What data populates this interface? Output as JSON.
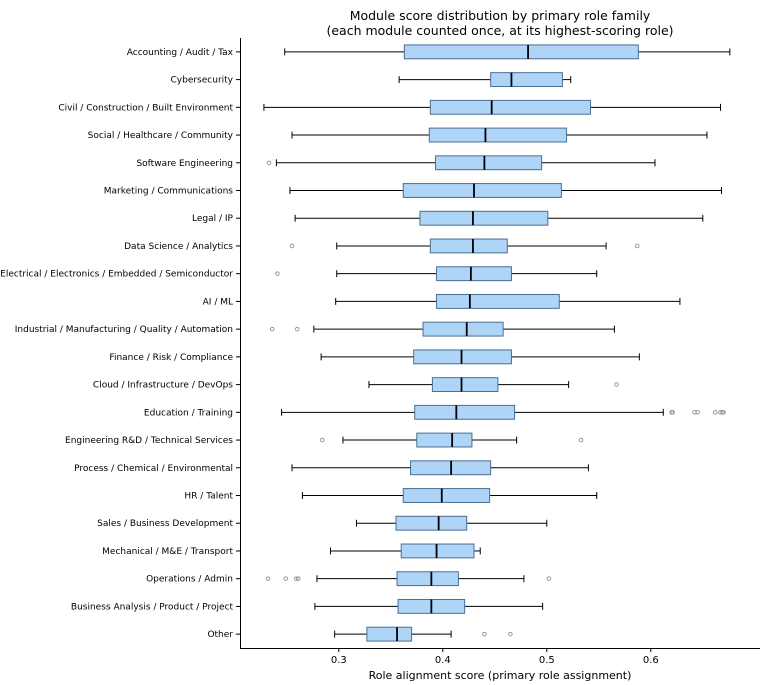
{
  "chart_data": {
    "type": "boxplot",
    "orientation": "horizontal",
    "title_lines": [
      "Module score distribution by primary role family",
      "(each module counted once, at its highest-scoring role)"
    ],
    "xlabel": "Role alignment score (primary role assignment)",
    "ylabel": "",
    "xlim": [
      0.205,
      0.705
    ],
    "xticks": [
      "0.3",
      "0.4",
      "0.5",
      "0.6"
    ],
    "grid": false,
    "colors": {
      "box_fill": "#aed4f8",
      "box_edge": "#4a6f91",
      "median": "#000000",
      "whisker": "#000000",
      "flier": "#999999"
    },
    "categories": [
      {
        "label": "Accounting / Audit / Tax",
        "whisker_low": 0.248,
        "q1": 0.363,
        "median": 0.482,
        "q3": 0.588,
        "whisker_high": 0.676,
        "fliers": []
      },
      {
        "label": "Cybersecurity",
        "whisker_low": 0.358,
        "q1": 0.446,
        "median": 0.466,
        "q3": 0.515,
        "whisker_high": 0.523,
        "fliers": []
      },
      {
        "label": "Civil / Construction / Built Environment",
        "whisker_low": 0.228,
        "q1": 0.388,
        "median": 0.447,
        "q3": 0.542,
        "whisker_high": 0.667,
        "fliers": []
      },
      {
        "label": "Social / Healthcare / Community",
        "whisker_low": 0.255,
        "q1": 0.387,
        "median": 0.441,
        "q3": 0.519,
        "whisker_high": 0.654,
        "fliers": []
      },
      {
        "label": "Software Engineering",
        "whisker_low": 0.24,
        "q1": 0.393,
        "median": 0.44,
        "q3": 0.495,
        "whisker_high": 0.604,
        "fliers": [
          0.233
        ]
      },
      {
        "label": "Marketing / Communications",
        "whisker_low": 0.253,
        "q1": 0.362,
        "median": 0.43,
        "q3": 0.514,
        "whisker_high": 0.668,
        "fliers": []
      },
      {
        "label": "Legal / IP",
        "whisker_low": 0.258,
        "q1": 0.378,
        "median": 0.429,
        "q3": 0.501,
        "whisker_high": 0.65,
        "fliers": []
      },
      {
        "label": "Data Science / Analytics",
        "whisker_low": 0.298,
        "q1": 0.388,
        "median": 0.429,
        "q3": 0.462,
        "whisker_high": 0.557,
        "fliers": [
          0.255,
          0.587
        ]
      },
      {
        "label": "Electrical / Electronics / Embedded / Semiconductor",
        "whisker_low": 0.298,
        "q1": 0.394,
        "median": 0.427,
        "q3": 0.466,
        "whisker_high": 0.548,
        "fliers": [
          0.241
        ]
      },
      {
        "label": "AI / ML",
        "whisker_low": 0.297,
        "q1": 0.394,
        "median": 0.426,
        "q3": 0.512,
        "whisker_high": 0.628,
        "fliers": []
      },
      {
        "label": "Industrial / Manufacturing / Quality / Automation",
        "whisker_low": 0.276,
        "q1": 0.381,
        "median": 0.423,
        "q3": 0.458,
        "whisker_high": 0.565,
        "fliers": [
          0.236,
          0.26
        ]
      },
      {
        "label": "Finance / Risk / Compliance",
        "whisker_low": 0.283,
        "q1": 0.372,
        "median": 0.418,
        "q3": 0.466,
        "whisker_high": 0.589,
        "fliers": []
      },
      {
        "label": "Cloud / Infrastructure / DevOps",
        "whisker_low": 0.329,
        "q1": 0.39,
        "median": 0.418,
        "q3": 0.453,
        "whisker_high": 0.521,
        "fliers": [
          0.567
        ]
      },
      {
        "label": "Education / Training",
        "whisker_low": 0.245,
        "q1": 0.373,
        "median": 0.413,
        "q3": 0.469,
        "whisker_high": 0.612,
        "fliers": [
          0.62,
          0.621,
          0.642,
          0.645,
          0.662,
          0.667,
          0.669,
          0.67
        ]
      },
      {
        "label": "Engineering R&D / Technical Services",
        "whisker_low": 0.304,
        "q1": 0.375,
        "median": 0.409,
        "q3": 0.428,
        "whisker_high": 0.471,
        "fliers": [
          0.284,
          0.533
        ]
      },
      {
        "label": "Process / Chemical / Environmental",
        "whisker_low": 0.255,
        "q1": 0.369,
        "median": 0.408,
        "q3": 0.446,
        "whisker_high": 0.54,
        "fliers": []
      },
      {
        "label": "HR / Talent",
        "whisker_low": 0.265,
        "q1": 0.362,
        "median": 0.399,
        "q3": 0.445,
        "whisker_high": 0.548,
        "fliers": []
      },
      {
        "label": "Sales / Business Development",
        "whisker_low": 0.317,
        "q1": 0.355,
        "median": 0.396,
        "q3": 0.423,
        "whisker_high": 0.5,
        "fliers": []
      },
      {
        "label": "Mechanical / M&E / Transport",
        "whisker_low": 0.292,
        "q1": 0.36,
        "median": 0.394,
        "q3": 0.43,
        "whisker_high": 0.436,
        "fliers": []
      },
      {
        "label": "Operations / Admin",
        "whisker_low": 0.279,
        "q1": 0.356,
        "median": 0.389,
        "q3": 0.415,
        "whisker_high": 0.478,
        "fliers": [
          0.232,
          0.249,
          0.259,
          0.261,
          0.502
        ]
      },
      {
        "label": "Business Analysis / Product / Project",
        "whisker_low": 0.277,
        "q1": 0.357,
        "median": 0.389,
        "q3": 0.421,
        "whisker_high": 0.496,
        "fliers": []
      },
      {
        "label": "Other",
        "whisker_low": 0.296,
        "q1": 0.327,
        "median": 0.356,
        "q3": 0.37,
        "whisker_high": 0.408,
        "fliers": [
          0.44,
          0.465
        ]
      }
    ]
  }
}
